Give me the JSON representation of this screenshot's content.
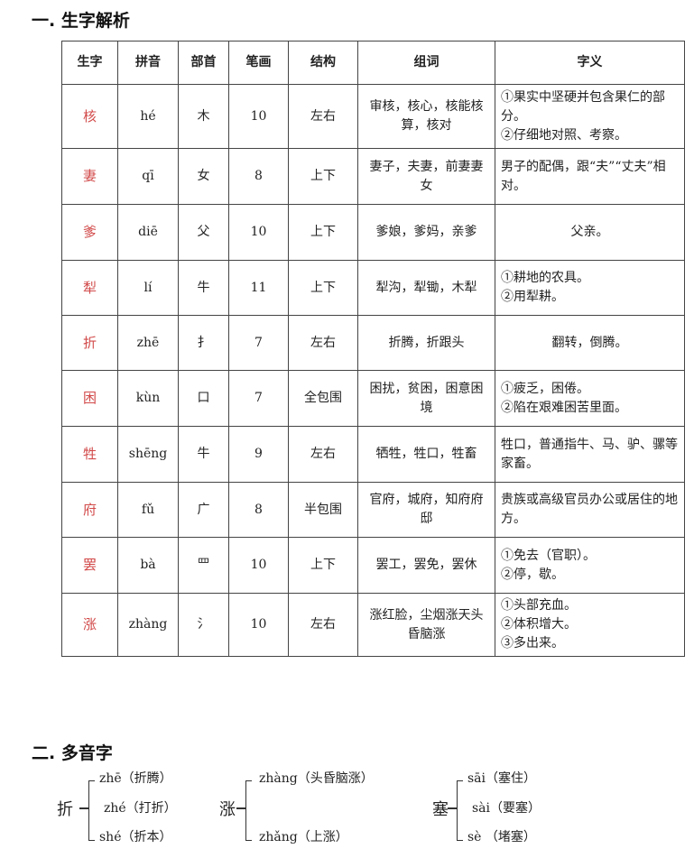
{
  "section1": {
    "title": "一. 生字解析"
  },
  "table": {
    "headers": [
      "生字",
      "拼音",
      "部首",
      "笔画",
      "结构",
      "组词",
      "字义"
    ],
    "rows": [
      {
        "char": "核",
        "pinyin": "hé",
        "radical": "木",
        "strokes": "10",
        "structure": "左右",
        "words": "审核，核心，核能核算，核对",
        "meaning": [
          "①果实中坚硬并包含果仁的部分。",
          "②仔细地对照、考察。"
        ]
      },
      {
        "char": "妻",
        "pinyin": "qī",
        "radical": "女",
        "strokes": "8",
        "structure": "上下",
        "words": "妻子，夫妻，前妻妻女",
        "meaning": [
          "男子的配偶，跟“夫”“丈夫”相对。"
        ]
      },
      {
        "char": "爹",
        "pinyin": "diē",
        "radical": "父",
        "strokes": "10",
        "structure": "上下",
        "words": "爹娘，爹妈，亲爹",
        "meaning": [
          "父亲。"
        ],
        "center": true
      },
      {
        "char": "犁",
        "pinyin": "lí",
        "radical": "牛",
        "strokes": "11",
        "structure": "上下",
        "words": "犁沟，犁锄，木犁",
        "meaning": [
          "①耕地的农具。",
          "②用犁耕。"
        ]
      },
      {
        "char": "折",
        "pinyin": "zhē",
        "radical": "扌",
        "strokes": "7",
        "structure": "左右",
        "words": "折腾，折跟头",
        "meaning": [
          "翻转，倒腾。"
        ],
        "center": true
      },
      {
        "char": "困",
        "pinyin": "kùn",
        "radical": "口",
        "strokes": "7",
        "structure": "全包围",
        "words": "困扰，贫困，困意困境",
        "meaning": [
          "①疲乏，困倦。",
          "②陷在艰难困苦里面。"
        ]
      },
      {
        "char": "牲",
        "pinyin": "shēng",
        "radical": "牛",
        "strokes": "9",
        "structure": "左右",
        "words": "牺牲，牲口，牲畜",
        "meaning": [
          "牲口，普通指牛、马、驴、骡等家畜。"
        ]
      },
      {
        "char": "府",
        "pinyin": "fǔ",
        "radical": "广",
        "strokes": "8",
        "structure": "半包围",
        "words": "官府，城府，知府府邸",
        "meaning": [
          "贵族或高级官员办公或居住的地方。"
        ]
      },
      {
        "char": "罢",
        "pinyin": "bà",
        "radical": "罒",
        "strokes": "10",
        "structure": "上下",
        "words": "罢工，罢免，罢休",
        "meaning": [
          "①免去（官职）。",
          "②停，歇。"
        ]
      },
      {
        "char": "涨",
        "pinyin": "zhàng",
        "radical": "氵",
        "strokes": "10",
        "structure": "左右",
        "words": "涨红脸，尘烟涨天头昏脑涨",
        "meaning": [
          "①头部充血。",
          "②体积增大。",
          "③多出来。"
        ]
      }
    ]
  },
  "section2": {
    "title": "二. 多音字",
    "groups": [
      {
        "char": "折",
        "readings": [
          "zhē（折腾）",
          "zhé（打折）",
          "shé（折本）"
        ]
      },
      {
        "char": "涨",
        "readings": [
          "zhàng（头昏脑涨）",
          "zhǎng（上涨）"
        ]
      },
      {
        "char": "塞",
        "readings": [
          "sāi（塞住）",
          "sài（要塞）",
          "sè （堵塞）"
        ]
      }
    ]
  },
  "colors": {
    "new_char": "#d24a4a"
  }
}
